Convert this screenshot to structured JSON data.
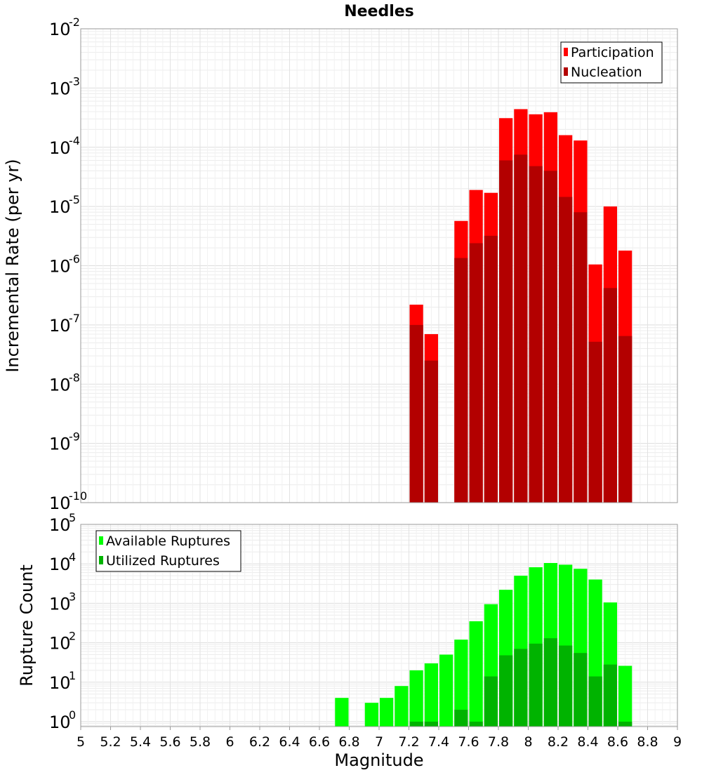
{
  "chart_data": [
    {
      "type": "bar",
      "title": "Needles",
      "xlabel": "",
      "ylabel": "Incremental Rate (per yr)",
      "yscale": "log",
      "ylim": [
        1e-10,
        0.01
      ],
      "xlim": [
        5,
        9
      ],
      "ytick_base": "10",
      "ytick_exponents": [
        "-10",
        "-9",
        "-8",
        "-7",
        "-6",
        "-5",
        "-4",
        "-3",
        "-2"
      ],
      "legend": {
        "placement": "top-right",
        "entries": [
          "Participation",
          "Nucleation"
        ]
      },
      "colors": {
        "Participation": "#ff0000",
        "Nucleation": "#b30000"
      },
      "x": [
        7.25,
        7.35,
        7.55,
        7.65,
        7.75,
        7.85,
        7.95,
        8.05,
        8.15,
        8.25,
        8.35,
        8.45,
        8.55,
        8.65
      ],
      "series": [
        {
          "name": "Participation",
          "values": [
            2.2e-07,
            7e-08,
            5.7e-06,
            1.9e-05,
            1.7e-05,
            0.00031,
            0.00044,
            0.00036,
            0.00039,
            0.00016,
            0.00013,
            1.05e-06,
            1e-05,
            1.8e-06
          ]
        },
        {
          "name": "Nucleation",
          "values": [
            1e-07,
            2.5e-08,
            1.35e-06,
            2.4e-06,
            3.2e-06,
            6e-05,
            7.5e-05,
            4.8e-05,
            4e-05,
            1.45e-05,
            8e-06,
            5.2e-08,
            4.2e-07,
            6.5e-08
          ]
        }
      ]
    },
    {
      "type": "bar",
      "title": "",
      "xlabel": "Magnitude",
      "ylabel": "Rupture Count",
      "yscale": "log",
      "ylim": [
        0.75,
        100000.0
      ],
      "xlim": [
        5,
        9
      ],
      "ytick_base": "10",
      "ytick_exponents": [
        "0",
        "1",
        "2",
        "3",
        "4",
        "5"
      ],
      "xticks": [
        "5",
        "5.2",
        "5.4",
        "5.6",
        "5.8",
        "6",
        "6.2",
        "6.4",
        "6.6",
        "6.8",
        "7",
        "7.2",
        "7.4",
        "7.6",
        "7.8",
        "8",
        "8.2",
        "8.4",
        "8.6",
        "8.8",
        "9"
      ],
      "legend": {
        "placement": "top-left",
        "entries": [
          "Available Ruptures",
          "Utilized Ruptures"
        ]
      },
      "colors": {
        "Available Ruptures": "#00ff00",
        "Utilized Ruptures": "#00b300"
      },
      "x": [
        6.75,
        6.95,
        7.05,
        7.15,
        7.25,
        7.35,
        7.45,
        7.55,
        7.65,
        7.75,
        7.85,
        7.95,
        8.05,
        8.15,
        8.25,
        8.35,
        8.45,
        8.55,
        8.65
      ],
      "series": [
        {
          "name": "Available Ruptures",
          "values": [
            4,
            3,
            4,
            8,
            20,
            30,
            50,
            120,
            350,
            950,
            2200,
            5000,
            8200,
            10500,
            9500,
            7500,
            4000,
            1050,
            26
          ]
        },
        {
          "name": "Utilized Ruptures",
          "values": [
            null,
            null,
            null,
            null,
            1,
            1,
            null,
            2,
            1,
            14,
            48,
            70,
            95,
            130,
            85,
            55,
            14,
            28,
            1
          ]
        }
      ]
    }
  ]
}
